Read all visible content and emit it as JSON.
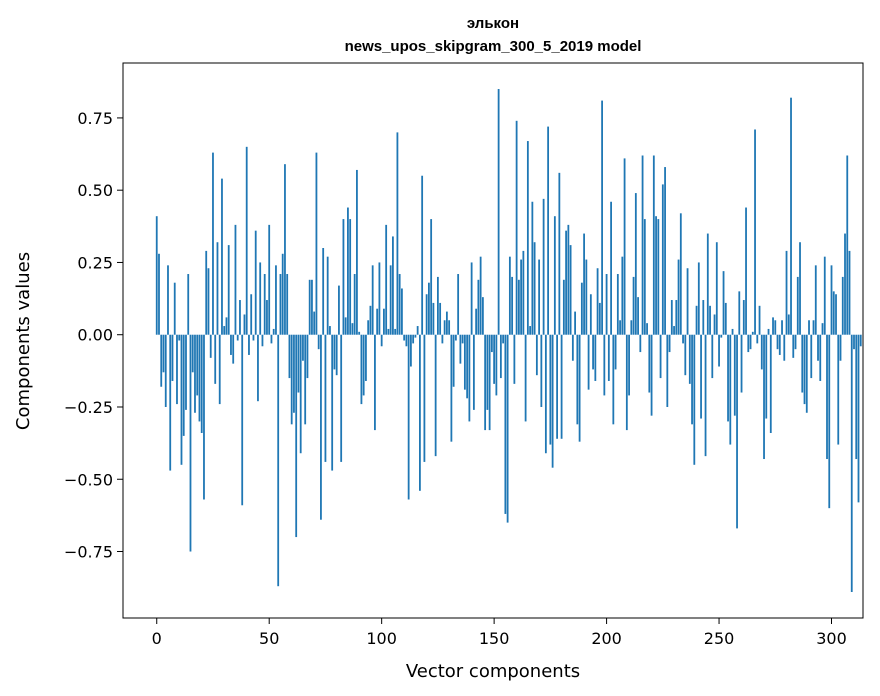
{
  "chart_data": {
    "type": "bar",
    "title": "элькон",
    "subtitle": "news_upos_skipgram_300_5_2019 model",
    "xlabel": "Vector components",
    "ylabel": "Components values",
    "xlim": [
      -15,
      314
    ],
    "ylim": [
      -0.98,
      0.94
    ],
    "xticks": [
      0,
      50,
      100,
      150,
      200,
      250,
      300
    ],
    "xtick_labels": [
      "0",
      "50",
      "100",
      "150",
      "200",
      "250",
      "300"
    ],
    "yticks": [
      -0.75,
      -0.5,
      -0.25,
      0.0,
      0.25,
      0.5,
      0.75
    ],
    "ytick_labels": [
      "−0.75",
      "−0.50",
      "−0.25",
      "0.00",
      "0.25",
      "0.50",
      "0.75"
    ],
    "series": [
      {
        "name": "components",
        "color": "#1f77b4",
        "x_start": 0,
        "values": [
          0.41,
          0.28,
          -0.18,
          -0.13,
          -0.25,
          0.24,
          -0.47,
          -0.16,
          0.18,
          -0.24,
          -0.02,
          -0.45,
          -0.35,
          -0.26,
          0.21,
          -0.75,
          -0.13,
          -0.27,
          -0.21,
          -0.3,
          -0.34,
          -0.57,
          0.29,
          0.23,
          -0.08,
          0.63,
          -0.17,
          0.32,
          -0.24,
          0.54,
          0.03,
          0.06,
          0.31,
          -0.07,
          -0.1,
          0.38,
          -0.02,
          0.12,
          -0.59,
          0.07,
          0.65,
          -0.07,
          0.14,
          -0.02,
          0.36,
          -0.23,
          0.25,
          -0.04,
          0.21,
          0.12,
          0.38,
          -0.03,
          0.02,
          0.24,
          -0.87,
          0.21,
          0.28,
          0.59,
          0.21,
          -0.15,
          -0.31,
          -0.27,
          -0.7,
          -0.2,
          -0.41,
          -0.09,
          -0.31,
          -0.15,
          0.19,
          0.19,
          0.08,
          0.63,
          -0.05,
          -0.64,
          0.3,
          -0.44,
          0.27,
          0.03,
          -0.47,
          -0.12,
          -0.14,
          0.17,
          -0.44,
          0.4,
          0.06,
          0.44,
          0.4,
          0.04,
          0.21,
          0.57,
          0.01,
          -0.24,
          -0.21,
          -0.16,
          0.05,
          0.1,
          0.24,
          -0.33,
          0.09,
          0.25,
          -0.04,
          0.09,
          0.38,
          0.02,
          0.24,
          0.34,
          0.02,
          0.7,
          0.21,
          0.16,
          -0.02,
          -0.04,
          -0.57,
          -0.11,
          -0.03,
          -0.01,
          0.03,
          -0.54,
          0.55,
          -0.44,
          0.14,
          0.18,
          0.4,
          0.11,
          -0.42,
          0.2,
          0.11,
          -0.03,
          0.05,
          0.08,
          0.05,
          -0.37,
          -0.18,
          -0.02,
          0.21,
          -0.1,
          -0.03,
          -0.19,
          -0.22,
          -0.3,
          0.25,
          -0.26,
          0.09,
          0.19,
          0.27,
          0.13,
          -0.33,
          -0.26,
          -0.33,
          -0.06,
          -0.17,
          -0.21,
          0.85,
          -0.15,
          -0.03,
          -0.62,
          -0.65,
          0.27,
          0.2,
          -0.17,
          0.74,
          0.19,
          0.26,
          0.29,
          -0.3,
          0.67,
          0.03,
          0.46,
          0.32,
          -0.14,
          0.26,
          -0.25,
          0.47,
          -0.41,
          0.72,
          -0.38,
          -0.46,
          0.41,
          -0.36,
          0.56,
          -0.36,
          0.19,
          0.36,
          0.38,
          0.31,
          -0.09,
          0.08,
          -0.31,
          -0.37,
          0.18,
          0.35,
          0.26,
          -0.19,
          0.14,
          -0.12,
          -0.16,
          0.23,
          0.11,
          0.81,
          -0.21,
          0.21,
          -0.16,
          0.46,
          -0.31,
          -0.12,
          0.21,
          0.05,
          0.27,
          0.61,
          -0.33,
          -0.21,
          0.05,
          0.2,
          0.49,
          0.13,
          -0.06,
          0.62,
          0.4,
          0.04,
          -0.2,
          -0.28,
          0.62,
          0.41,
          0.4,
          -0.15,
          0.52,
          0.58,
          -0.25,
          -0.06,
          0.12,
          0.03,
          0.12,
          0.26,
          0.42,
          -0.03,
          -0.14,
          0.23,
          -0.17,
          -0.31,
          -0.45,
          0.1,
          0.25,
          -0.29,
          0.12,
          -0.42,
          0.35,
          0.1,
          -0.15,
          0.07,
          0.32,
          -0.11,
          -0.01,
          0.22,
          0.11,
          -0.3,
          -0.38,
          0.02,
          -0.28,
          -0.67,
          0.15,
          -0.2,
          0.12,
          0.44,
          -0.06,
          -0.05,
          0.01,
          0.71,
          -0.03,
          0.1,
          -0.12,
          -0.43,
          -0.29,
          0.02,
          -0.34,
          0.06,
          0.05,
          -0.05,
          -0.07,
          0.05,
          -0.09,
          0.29,
          0.07,
          0.82,
          -0.08,
          -0.05,
          0.2,
          0.32,
          -0.2,
          -0.24,
          -0.27,
          0.05,
          -0.15,
          0.05,
          0.24,
          -0.09,
          -0.16,
          0.04,
          0.27,
          -0.43,
          -0.6,
          0.24,
          0.15,
          0.14,
          -0.38,
          -0.09,
          0.2,
          0.35,
          0.62,
          0.29,
          -0.89,
          -0.05,
          -0.43,
          -0.58,
          -0.04
        ]
      }
    ]
  }
}
